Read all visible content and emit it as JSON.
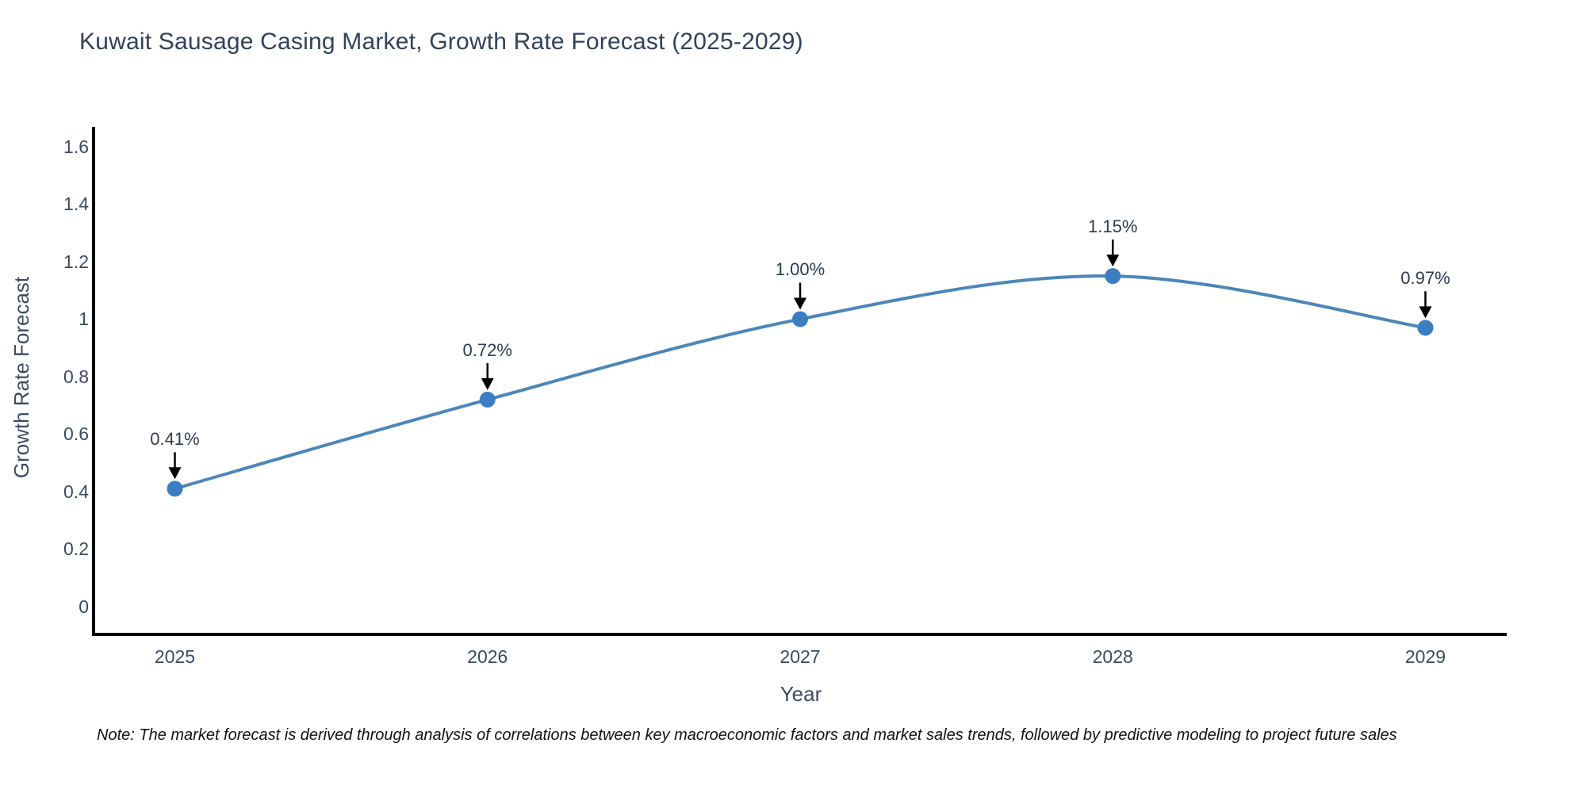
{
  "header": {
    "title": "Kuwait Sausage Casing Market, Growth Rate Forecast (2025-2029)"
  },
  "chart_data": {
    "type": "line",
    "title": "Kuwait Sausage Casing Market, Growth Rate Forecast (2025-2029)",
    "x": [
      2025,
      2026,
      2027,
      2028,
      2029
    ],
    "values": [
      0.41,
      0.72,
      1.0,
      1.15,
      0.97
    ],
    "point_labels": [
      "0.41%",
      "0.72%",
      "1.00%",
      "1.15%",
      "0.97%"
    ],
    "x_tick_labels": [
      "2025",
      "2026",
      "2027",
      "2028",
      "2029"
    ],
    "y_ticks": [
      0,
      0.2,
      0.4,
      0.6,
      0.8,
      1,
      1.2,
      1.4,
      1.6
    ],
    "y_tick_labels": [
      "0",
      "0.2",
      "0.4",
      "0.6",
      "0.8",
      "1",
      "1.2",
      "1.4",
      "1.6"
    ],
    "xlabel": "Year",
    "ylabel": "Growth Rate Forecast",
    "x_range": [
      2024.74,
      2029.26
    ],
    "y_range": [
      -0.097,
      1.669
    ],
    "line_shape": "spline",
    "grid": false,
    "legend": "none",
    "colors": {
      "line": "#4d86b9",
      "marker": "#3b7fc2",
      "axis": "#000000",
      "text": "#3b4a66",
      "annotation_arrow": "#000000"
    }
  },
  "footer": {
    "note": "Note: The market forecast is derived through analysis of correlations between key macroeconomic factors and market sales trends, followed by predictive modeling to project future sales"
  }
}
